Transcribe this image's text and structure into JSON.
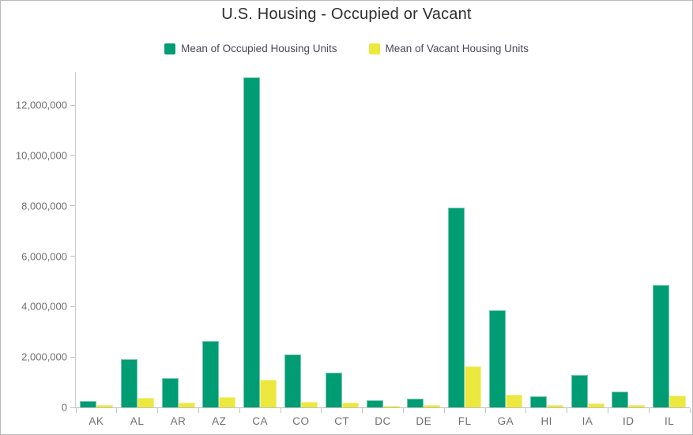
{
  "title": "U.S. Housing - Occupied or Vacant",
  "legend": {
    "items": [
      {
        "label": "Mean of Occupied Housing Units",
        "color": "#009c74"
      },
      {
        "label": "Mean of Vacant Housing Units",
        "color": "#ece83d"
      }
    ]
  },
  "chart_data": {
    "type": "bar",
    "title": "U.S. Housing - Occupied or Vacant",
    "categories": [
      "AK",
      "AL",
      "AR",
      "AZ",
      "CA",
      "CO",
      "CT",
      "DC",
      "DE",
      "FL",
      "GA",
      "HI",
      "IA",
      "ID",
      "IL"
    ],
    "series": [
      {
        "name": "Mean of Occupied Housing Units",
        "color": "#009c74",
        "values": [
          250000,
          1900000,
          1170000,
          2630000,
          13110000,
          2110000,
          1390000,
          280000,
          360000,
          7920000,
          3840000,
          450000,
          1270000,
          640000,
          4870000
        ]
      },
      {
        "name": "Mean of Vacant Housing Units",
        "color": "#ece83d",
        "values": [
          80000,
          390000,
          200000,
          410000,
          1090000,
          230000,
          190000,
          50000,
          100000,
          1620000,
          510000,
          80000,
          150000,
          100000,
          460000
        ]
      }
    ],
    "xlabel": "",
    "ylabel": "",
    "ylim": [
      0,
      13320000
    ],
    "yticks": [
      0,
      2000000,
      4000000,
      6000000,
      8000000,
      10000000,
      12000000
    ],
    "ytick_labels": [
      "0",
      "2,000,000",
      "4,000,000",
      "6,000,000",
      "8,000,000",
      "10,000,000",
      "12,000,000"
    ],
    "grid": false,
    "legend_position": "top"
  }
}
